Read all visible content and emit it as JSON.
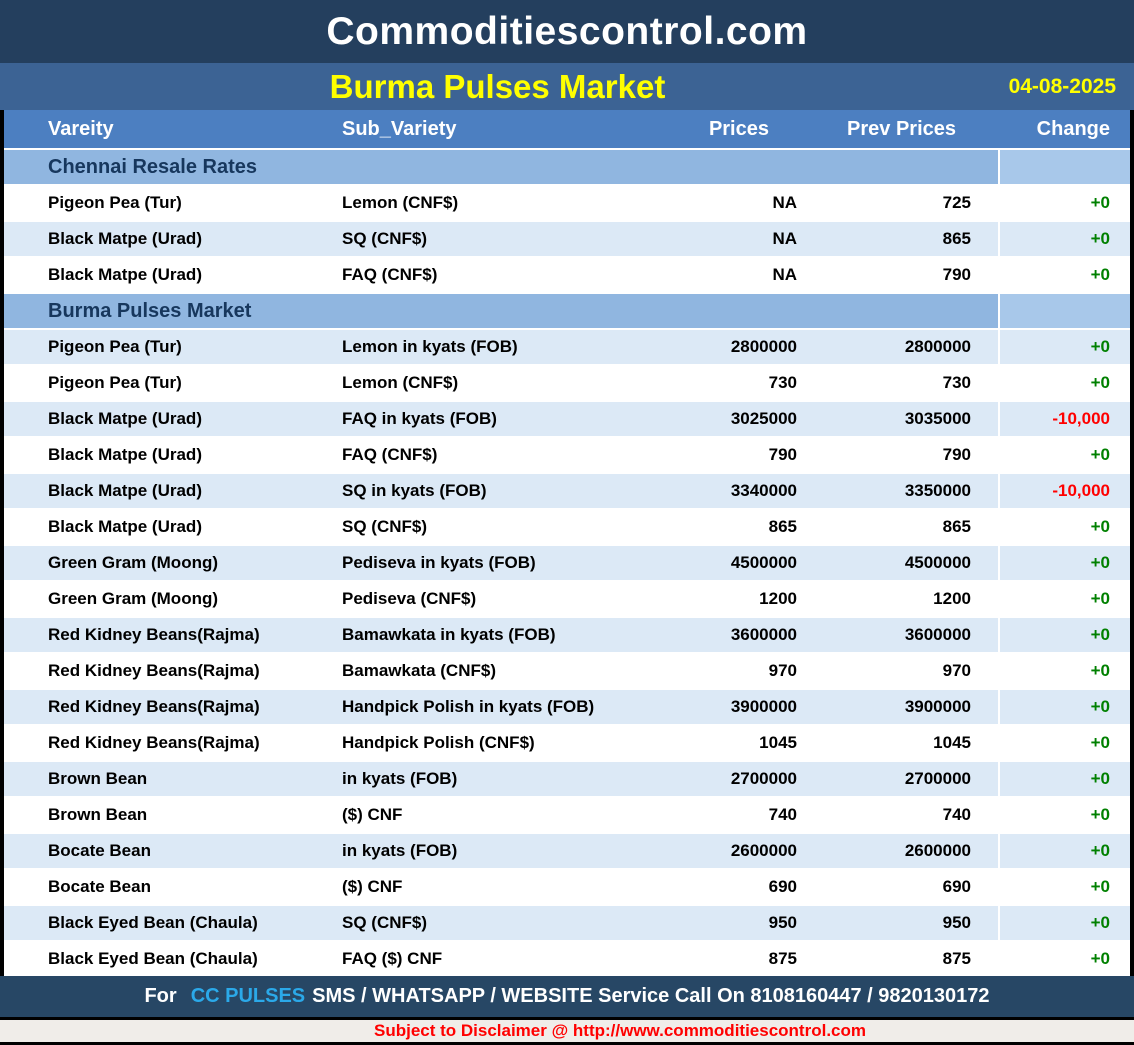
{
  "site_title": "Commoditiescontrol.com",
  "report": {
    "title": "Burma Pulses Market",
    "date": "04-08-2025"
  },
  "columns": {
    "variety": "Vareity",
    "sub_variety": "Sub_Variety",
    "price": "Prices",
    "prev_price": "Prev Prices",
    "change": "Change"
  },
  "rows": [
    {
      "type": "section",
      "label": "Chennai Resale Rates"
    },
    {
      "type": "data",
      "shade": "white",
      "variety": "Pigeon Pea (Tur)",
      "sub_variety": "Lemon (CNF$)",
      "price": "NA",
      "prev_price": "725",
      "change": "+0",
      "trend": "up"
    },
    {
      "type": "data",
      "shade": "blue",
      "variety": "Black Matpe (Urad)",
      "sub_variety": "SQ (CNF$)",
      "price": "NA",
      "prev_price": "865",
      "change": "+0",
      "trend": "up"
    },
    {
      "type": "data",
      "shade": "white",
      "variety": "Black Matpe (Urad)",
      "sub_variety": "FAQ (CNF$)",
      "price": "NA",
      "prev_price": "790",
      "change": "+0",
      "trend": "up"
    },
    {
      "type": "section",
      "label": "Burma Pulses Market"
    },
    {
      "type": "data",
      "shade": "blue",
      "variety": "Pigeon Pea (Tur)",
      "sub_variety": "Lemon in kyats (FOB)",
      "price": "2800000",
      "prev_price": "2800000",
      "change": "+0",
      "trend": "up"
    },
    {
      "type": "data",
      "shade": "white",
      "variety": "Pigeon Pea (Tur)",
      "sub_variety": "Lemon (CNF$)",
      "price": "730",
      "prev_price": "730",
      "change": "+0",
      "trend": "up"
    },
    {
      "type": "data",
      "shade": "blue",
      "variety": "Black Matpe (Urad)",
      "sub_variety": "FAQ in kyats (FOB)",
      "price": "3025000",
      "prev_price": "3035000",
      "change": "-10,000",
      "trend": "down"
    },
    {
      "type": "data",
      "shade": "white",
      "variety": "Black Matpe (Urad)",
      "sub_variety": "FAQ (CNF$)",
      "price": "790",
      "prev_price": "790",
      "change": "+0",
      "trend": "up"
    },
    {
      "type": "data",
      "shade": "blue",
      "variety": "Black Matpe (Urad)",
      "sub_variety": "SQ in kyats (FOB)",
      "price": "3340000",
      "prev_price": "3350000",
      "change": "-10,000",
      "trend": "down"
    },
    {
      "type": "data",
      "shade": "white",
      "variety": "Black Matpe (Urad)",
      "sub_variety": "SQ (CNF$)",
      "price": "865",
      "prev_price": "865",
      "change": "+0",
      "trend": "up"
    },
    {
      "type": "data",
      "shade": "blue",
      "variety": "Green Gram (Moong)",
      "sub_variety": "Pediseva in kyats (FOB)",
      "price": "4500000",
      "prev_price": "4500000",
      "change": "+0",
      "trend": "up"
    },
    {
      "type": "data",
      "shade": "white",
      "variety": "Green Gram (Moong)",
      "sub_variety": "Pediseva (CNF$)",
      "price": "1200",
      "prev_price": "1200",
      "change": "+0",
      "trend": "up"
    },
    {
      "type": "data",
      "shade": "blue",
      "variety": "Red Kidney Beans(Rajma)",
      "sub_variety": "Bamawkata in kyats (FOB)",
      "price": "3600000",
      "prev_price": "3600000",
      "change": "+0",
      "trend": "up"
    },
    {
      "type": "data",
      "shade": "white",
      "variety": "Red Kidney Beans(Rajma)",
      "sub_variety": "Bamawkata (CNF$)",
      "price": "970",
      "prev_price": "970",
      "change": "+0",
      "trend": "up"
    },
    {
      "type": "data",
      "shade": "blue",
      "variety": "Red Kidney Beans(Rajma)",
      "sub_variety": "Handpick Polish in kyats (FOB)",
      "price": "3900000",
      "prev_price": "3900000",
      "change": "+0",
      "trend": "up"
    },
    {
      "type": "data",
      "shade": "white",
      "variety": "Red Kidney Beans(Rajma)",
      "sub_variety": "Handpick Polish (CNF$)",
      "price": "1045",
      "prev_price": "1045",
      "change": "+0",
      "trend": "up"
    },
    {
      "type": "data",
      "shade": "blue",
      "variety": "Brown Bean",
      "sub_variety": "in kyats (FOB)",
      "price": "2700000",
      "prev_price": "2700000",
      "change": "+0",
      "trend": "up"
    },
    {
      "type": "data",
      "shade": "white",
      "variety": "Brown Bean",
      "sub_variety": "($) CNF",
      "price": "740",
      "prev_price": "740",
      "change": "+0",
      "trend": "up"
    },
    {
      "type": "data",
      "shade": "blue",
      "variety": "Bocate Bean",
      "sub_variety": "in kyats (FOB)",
      "price": "2600000",
      "prev_price": "2600000",
      "change": "+0",
      "trend": "up"
    },
    {
      "type": "data",
      "shade": "white",
      "variety": "Bocate Bean",
      "sub_variety": "($) CNF",
      "price": "690",
      "prev_price": "690",
      "change": "+0",
      "trend": "up"
    },
    {
      "type": "data",
      "shade": "blue",
      "variety": "Black Eyed Bean (Chaula)",
      "sub_variety": "SQ (CNF$)",
      "price": "950",
      "prev_price": "950",
      "change": "+0",
      "trend": "up"
    },
    {
      "type": "data",
      "shade": "white",
      "variety": "Black Eyed Bean (Chaula)",
      "sub_variety": "FAQ ($) CNF",
      "price": "875",
      "prev_price": "875",
      "change": "+0",
      "trend": "up"
    }
  ],
  "footer": {
    "prefix": "For",
    "brand": "CC PULSES",
    "message": "SMS / WHATSAPP / WEBSITE Service Call On 8108160447 / 9820130172"
  },
  "disclaimer": "Subject to Disclaimer @  http://www.commoditiescontrol.com",
  "colors": {
    "title_bar_bg": "#243F5E",
    "subtitle_bar_bg": "#3C6394",
    "header_row_bg": "#4C7FC1",
    "section_row_bg": "#90B6E0",
    "alt_row_bg": "#DCE9F6",
    "footer_bar_bg": "#274765",
    "title_accent": "#FFFF00",
    "brand_accent": "#2BA9E9",
    "positive_change": "#008000",
    "negative_change": "#FF0000",
    "section_text": "#17375D",
    "disclaimer_text": "#FF0000"
  }
}
